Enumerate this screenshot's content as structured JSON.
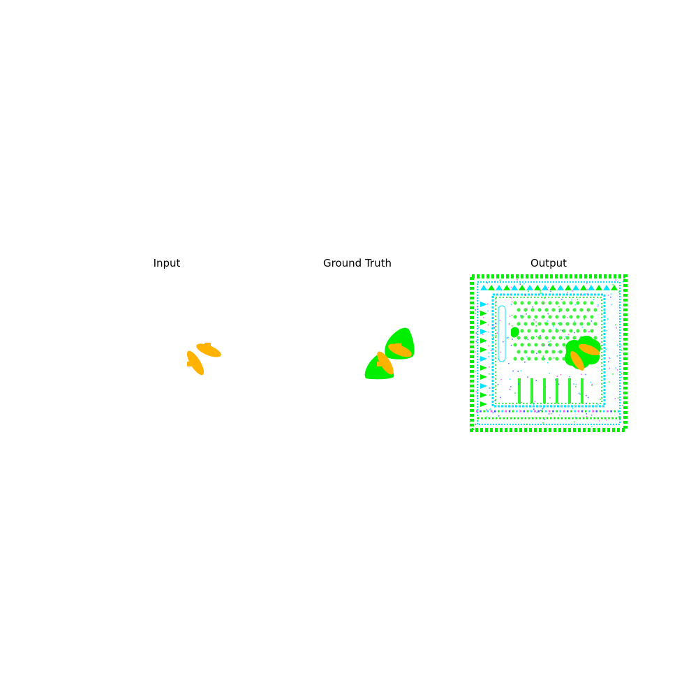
{
  "panels": [
    {
      "title": "Input"
    },
    {
      "title": "Ground Truth"
    },
    {
      "title": "Output"
    }
  ],
  "colors": {
    "shape_fill": "#ffb300",
    "region_fill": "#00ee00",
    "background": "#ffffff",
    "noise_cyan": "#00e5ff",
    "noise_magenta": "#ff40ff",
    "noise_blue": "#3050ff"
  }
}
